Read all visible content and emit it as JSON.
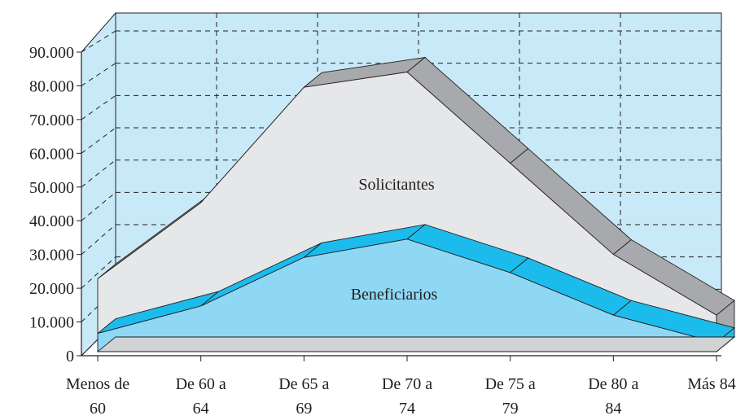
{
  "chart_data": {
    "type": "area",
    "view": "3d",
    "categories": [
      [
        "Menos de",
        "60"
      ],
      [
        "De 60 a",
        "64"
      ],
      [
        "De 65 a",
        "69"
      ],
      [
        "De 70 a",
        "74"
      ],
      [
        "De 75 a",
        "79"
      ],
      [
        "De 80 a",
        "84"
      ],
      [
        "Más 84"
      ]
    ],
    "series": [
      {
        "name": "Solicitantes",
        "values": [
          24000,
          49000,
          87000,
          92000,
          62000,
          32000,
          12000
        ]
      },
      {
        "name": "Beneficiarios",
        "values": [
          6000,
          15000,
          31000,
          37000,
          26000,
          12000,
          3000
        ]
      }
    ],
    "y_ticks": [
      "0",
      "10.000",
      "20.000",
      "30.000",
      "40.000",
      "50.000",
      "60.000",
      "70.000",
      "80.000",
      "90.000"
    ],
    "ylim": [
      0,
      90000
    ],
    "grid": true,
    "colors": {
      "wall": "#c8e9f8",
      "grid": "#231f20",
      "solicitantes_front": "#e6e7e8",
      "solicitantes_top": "#a7a9ac",
      "beneficiarios_front": "#8fd8f5",
      "beneficiarios_top": "#1bbcec",
      "floor": "#d1d3d4"
    }
  }
}
